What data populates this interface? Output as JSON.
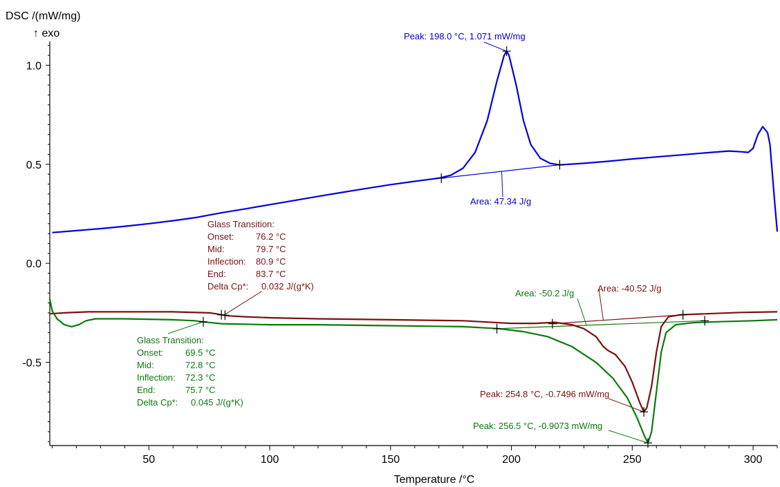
{
  "chart_data": {
    "type": "line",
    "ylabel": "DSC /(mW/mg)",
    "ylabel_sub": "↑ exo",
    "xlabel": "Temperature /°C",
    "xlim": [
      9,
      310
    ],
    "ylim": [
      -0.92,
      1.12
    ],
    "x_ticks": [
      "50",
      "100",
      "150",
      "200",
      "250",
      "300"
    ],
    "y_ticks": [
      "1.0",
      "0.5",
      "0.0",
      "-0.5"
    ],
    "colors": {
      "blue": "#0000dd",
      "red": "#7a1010",
      "green": "#0b7a0b"
    },
    "series": [
      {
        "color": "blue",
        "points": [
          [
            10,
            0.155
          ],
          [
            20,
            0.165
          ],
          [
            30,
            0.175
          ],
          [
            40,
            0.187
          ],
          [
            50,
            0.2
          ],
          [
            60,
            0.215
          ],
          [
            70,
            0.232
          ],
          [
            80,
            0.255
          ],
          [
            90,
            0.275
          ],
          [
            100,
            0.296
          ],
          [
            110,
            0.317
          ],
          [
            120,
            0.338
          ],
          [
            130,
            0.358
          ],
          [
            140,
            0.378
          ],
          [
            150,
            0.397
          ],
          [
            160,
            0.414
          ],
          [
            165,
            0.422
          ],
          [
            170,
            0.43
          ],
          [
            175,
            0.445
          ],
          [
            180,
            0.48
          ],
          [
            185,
            0.56
          ],
          [
            190,
            0.72
          ],
          [
            194,
            0.92
          ],
          [
            197,
            1.05
          ],
          [
            198,
            1.071
          ],
          [
            199,
            1.05
          ],
          [
            202,
            0.9
          ],
          [
            205,
            0.72
          ],
          [
            208,
            0.6
          ],
          [
            212,
            0.53
          ],
          [
            216,
            0.505
          ],
          [
            220,
            0.497
          ],
          [
            230,
            0.505
          ],
          [
            240,
            0.515
          ],
          [
            250,
            0.527
          ],
          [
            260,
            0.537
          ],
          [
            270,
            0.547
          ],
          [
            280,
            0.557
          ],
          [
            290,
            0.567
          ],
          [
            295,
            0.563
          ],
          [
            298,
            0.56
          ],
          [
            300,
            0.58
          ],
          [
            302,
            0.65
          ],
          [
            304,
            0.69
          ],
          [
            306,
            0.66
          ],
          [
            307,
            0.6
          ],
          [
            308,
            0.45
          ],
          [
            309,
            0.3
          ],
          [
            310,
            0.16
          ]
        ]
      },
      {
        "color": "red",
        "points": [
          [
            9,
            -0.255
          ],
          [
            15,
            -0.25
          ],
          [
            25,
            -0.245
          ],
          [
            40,
            -0.245
          ],
          [
            60,
            -0.245
          ],
          [
            75,
            -0.25
          ],
          [
            78,
            -0.255
          ],
          [
            80,
            -0.26
          ],
          [
            83,
            -0.265
          ],
          [
            90,
            -0.27
          ],
          [
            100,
            -0.275
          ],
          [
            120,
            -0.28
          ],
          [
            150,
            -0.285
          ],
          [
            180,
            -0.29
          ],
          [
            195,
            -0.3
          ],
          [
            200,
            -0.303
          ],
          [
            210,
            -0.303
          ],
          [
            218,
            -0.298
          ],
          [
            225,
            -0.31
          ],
          [
            230,
            -0.33
          ],
          [
            235,
            -0.37
          ],
          [
            238,
            -0.42
          ],
          [
            240,
            -0.44
          ],
          [
            243,
            -0.46
          ],
          [
            247,
            -0.52
          ],
          [
            250,
            -0.6
          ],
          [
            253,
            -0.7
          ],
          [
            254.8,
            -0.75
          ],
          [
            256,
            -0.73
          ],
          [
            258,
            -0.62
          ],
          [
            260,
            -0.45
          ],
          [
            262,
            -0.32
          ],
          [
            265,
            -0.27
          ],
          [
            270,
            -0.26
          ],
          [
            280,
            -0.255
          ],
          [
            295,
            -0.248
          ],
          [
            310,
            -0.245
          ]
        ]
      },
      {
        "color": "green",
        "points": [
          [
            9,
            -0.18
          ],
          [
            10,
            -0.24
          ],
          [
            12,
            -0.28
          ],
          [
            15,
            -0.31
          ],
          [
            18,
            -0.32
          ],
          [
            21,
            -0.31
          ],
          [
            24,
            -0.29
          ],
          [
            28,
            -0.28
          ],
          [
            40,
            -0.28
          ],
          [
            60,
            -0.285
          ],
          [
            69,
            -0.29
          ],
          [
            72,
            -0.295
          ],
          [
            76,
            -0.3
          ],
          [
            80,
            -0.305
          ],
          [
            100,
            -0.31
          ],
          [
            120,
            -0.31
          ],
          [
            150,
            -0.315
          ],
          [
            180,
            -0.32
          ],
          [
            195,
            -0.33
          ],
          [
            205,
            -0.345
          ],
          [
            215,
            -0.37
          ],
          [
            225,
            -0.42
          ],
          [
            235,
            -0.5
          ],
          [
            242,
            -0.58
          ],
          [
            248,
            -0.68
          ],
          [
            252,
            -0.78
          ],
          [
            255,
            -0.87
          ],
          [
            256.5,
            -0.907
          ],
          [
            258,
            -0.85
          ],
          [
            260,
            -0.65
          ],
          [
            262,
            -0.45
          ],
          [
            264,
            -0.35
          ],
          [
            268,
            -0.31
          ],
          [
            275,
            -0.3
          ],
          [
            285,
            -0.295
          ],
          [
            300,
            -0.29
          ],
          [
            310,
            -0.285
          ]
        ]
      }
    ],
    "baselines": [
      {
        "color": "blue",
        "from": [
          171,
          0.43
        ],
        "to": [
          220,
          0.497
        ]
      },
      {
        "color": "red",
        "from": [
          217,
          -0.305
        ],
        "to": [
          271,
          -0.26
        ]
      },
      {
        "color": "green",
        "from": [
          194,
          -0.33
        ],
        "to": [
          280,
          -0.29
        ]
      }
    ],
    "markers": [
      {
        "color": "blue",
        "at": [
          198,
          1.071
        ]
      },
      {
        "color": "blue",
        "at": [
          171,
          0.43
        ]
      },
      {
        "color": "blue",
        "at": [
          220,
          0.497
        ]
      },
      {
        "color": "red",
        "at": [
          80,
          -0.26
        ]
      },
      {
        "color": "red",
        "at": [
          81.5,
          -0.262
        ]
      },
      {
        "color": "red",
        "at": [
          217,
          -0.305
        ]
      },
      {
        "color": "red",
        "at": [
          271,
          -0.26
        ]
      },
      {
        "color": "red",
        "at": [
          254.8,
          -0.75
        ]
      },
      {
        "color": "green",
        "at": [
          72.5,
          -0.295
        ]
      },
      {
        "color": "green",
        "at": [
          194,
          -0.33
        ]
      },
      {
        "color": "green",
        "at": [
          280,
          -0.29
        ]
      },
      {
        "color": "green",
        "at": [
          256.5,
          -0.907
        ]
      }
    ],
    "annotations": {
      "blue_peak": "Peak: 198.0 °C, 1.071 mW/mg",
      "blue_area": "Area: 47.34 J/g",
      "red_gt": {
        "title": "Glass Transition:",
        "rows": [
          [
            "Onset:",
            "76.2 °C"
          ],
          [
            "Mid:",
            "79.7 °C"
          ],
          [
            "Inflection:",
            "80.9 °C"
          ],
          [
            "End:",
            "83.7 °C"
          ],
          [
            "Delta Cp*:",
            "0.032 J/(g*K)"
          ]
        ]
      },
      "green_gt": {
        "title": "Glass Transition:",
        "rows": [
          [
            "Onset:",
            "69.5 °C"
          ],
          [
            "Mid:",
            "72.8 °C"
          ],
          [
            "Inflection:",
            "72.3 °C"
          ],
          [
            "End:",
            "75.7 °C"
          ],
          [
            "Delta Cp*:",
            "0.045 J/(g*K)"
          ]
        ]
      },
      "green_area": "Area: -50.2 J/g",
      "red_area": "Area: -40.52 J/g",
      "red_peak": "Peak: 254.8 °C, -0.7496 mW/mg",
      "green_peak": "Peak: 256.5 °C, -0.9073 mW/mg"
    }
  }
}
